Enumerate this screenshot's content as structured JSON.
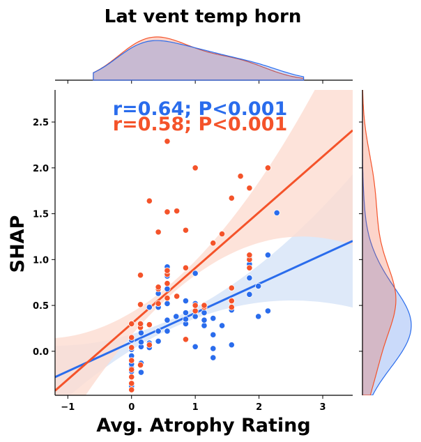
{
  "chart_data": {
    "type": "scatter",
    "title": "Lat vent temp horn",
    "xlabel": "Avg. Atrophy Rating",
    "ylabel": "SHAP",
    "xlim": [
      -1.2,
      3.47
    ],
    "ylim": [
      -0.48,
      2.85
    ],
    "x_ticks": [
      -1,
      0,
      1,
      2,
      3
    ],
    "y_ticks": [
      0.0,
      0.5,
      1.0,
      1.5,
      2.0,
      2.5
    ],
    "x_tick_labels": [
      "−1",
      "0",
      "1",
      "2",
      "3"
    ],
    "y_tick_labels": [
      "0.0",
      "0.5",
      "1.0",
      "1.5",
      "2.0",
      "2.5"
    ],
    "grid": false,
    "marginals": "kde top and right",
    "annotations": [
      {
        "text": "r=0.64; P<0.001",
        "color": "#2a6cec"
      },
      {
        "text": "r=0.58; P<0.001",
        "color": "#f4532a"
      }
    ],
    "series": [
      {
        "color": "#2a6cec",
        "band_color": "#d6e3f8",
        "fit": {
          "intercept": 0.1,
          "slope": 0.318,
          "ci_half_at_mean": 0.05,
          "ci_growth": 0.085,
          "x_mean": 0.65
        },
        "points": [
          [
            0,
            -0.38
          ],
          [
            0,
            -0.28
          ],
          [
            0,
            -0.22
          ],
          [
            0,
            -0.18
          ],
          [
            0,
            -0.14
          ],
          [
            0,
            -0.09
          ],
          [
            0,
            -0.05
          ],
          [
            0,
            0.02
          ],
          [
            0,
            0.12
          ],
          [
            0,
            0.3
          ],
          [
            0.15,
            -0.23
          ],
          [
            0.15,
            -0.13
          ],
          [
            0.15,
            0.05
          ],
          [
            0.15,
            0.1
          ],
          [
            0.15,
            0.2
          ],
          [
            0.15,
            0.3
          ],
          [
            0.28,
            0.04
          ],
          [
            0.28,
            0.09
          ],
          [
            0.28,
            0.48
          ],
          [
            0.42,
            0.11
          ],
          [
            0.42,
            0.22
          ],
          [
            0.42,
            0.48
          ],
          [
            0.42,
            0.63
          ],
          [
            0.56,
            0.22
          ],
          [
            0.56,
            0.34
          ],
          [
            0.56,
            0.52
          ],
          [
            0.56,
            0.68
          ],
          [
            0.56,
            0.82
          ],
          [
            0.56,
            0.92
          ],
          [
            0.7,
            0.38
          ],
          [
            0.85,
            0.3
          ],
          [
            0.85,
            0.35
          ],
          [
            0.85,
            0.42
          ],
          [
            0.85,
            0.55
          ],
          [
            1.0,
            0.05
          ],
          [
            1.0,
            0.38
          ],
          [
            1.0,
            0.52
          ],
          [
            1.0,
            0.85
          ],
          [
            1.14,
            0.28
          ],
          [
            1.14,
            0.34
          ],
          [
            1.14,
            0.42
          ],
          [
            1.28,
            -0.07
          ],
          [
            1.28,
            0.03
          ],
          [
            1.28,
            0.18
          ],
          [
            1.28,
            0.36
          ],
          [
            1.42,
            0.28
          ],
          [
            1.57,
            0.07
          ],
          [
            1.57,
            0.45
          ],
          [
            1.57,
            0.55
          ],
          [
            1.85,
            0.62
          ],
          [
            1.85,
            0.8
          ],
          [
            1.85,
            0.95
          ],
          [
            1.85,
            1.03
          ],
          [
            1.99,
            0.38
          ],
          [
            1.99,
            0.71
          ],
          [
            2.14,
            0.44
          ],
          [
            2.14,
            1.05
          ],
          [
            2.28,
            1.51
          ]
        ]
      },
      {
        "color": "#f4532a",
        "band_color": "#fcdcd1",
        "fit": {
          "intercept": 0.3,
          "slope": 0.608,
          "ci_half_at_mean": 0.06,
          "ci_growth": 0.15,
          "x_mean": 0.65
        },
        "points": [
          [
            0,
            -0.42
          ],
          [
            0,
            -0.35
          ],
          [
            0,
            -0.28
          ],
          [
            0,
            -0.2
          ],
          [
            0,
            -0.1
          ],
          [
            0,
            0.04
          ],
          [
            0,
            0.15
          ],
          [
            0,
            0.3
          ],
          [
            0.14,
            -0.15
          ],
          [
            0.14,
            0.26
          ],
          [
            0.14,
            0.3
          ],
          [
            0.14,
            0.51
          ],
          [
            0.14,
            0.83
          ],
          [
            0.28,
            0.07
          ],
          [
            0.28,
            0.29
          ],
          [
            0.28,
            1.64
          ],
          [
            0.42,
            0.52
          ],
          [
            0.42,
            0.68
          ],
          [
            0.42,
            0.7
          ],
          [
            0.42,
            1.3
          ],
          [
            0.56,
            0.58
          ],
          [
            0.56,
            0.74
          ],
          [
            0.56,
            0.84
          ],
          [
            0.56,
            0.88
          ],
          [
            0.56,
            1.52
          ],
          [
            0.56,
            2.29
          ],
          [
            0.71,
            1.53
          ],
          [
            0.71,
            0.6
          ],
          [
            0.85,
            0.13
          ],
          [
            0.85,
            0.91
          ],
          [
            0.85,
            1.32
          ],
          [
            1.0,
            0.44
          ],
          [
            1.0,
            0.5
          ],
          [
            1.0,
            2.0
          ],
          [
            1.14,
            0.48
          ],
          [
            1.14,
            0.5
          ],
          [
            1.28,
            1.18
          ],
          [
            1.42,
            1.28
          ],
          [
            1.57,
            0.48
          ],
          [
            1.57,
            0.55
          ],
          [
            1.57,
            0.69
          ],
          [
            1.57,
            1.67
          ],
          [
            1.71,
            1.91
          ],
          [
            1.85,
            1.78
          ],
          [
            1.85,
            0.91
          ],
          [
            1.85,
            1.0
          ],
          [
            1.85,
            1.05
          ],
          [
            2.14,
            2.0
          ]
        ]
      }
    ]
  }
}
